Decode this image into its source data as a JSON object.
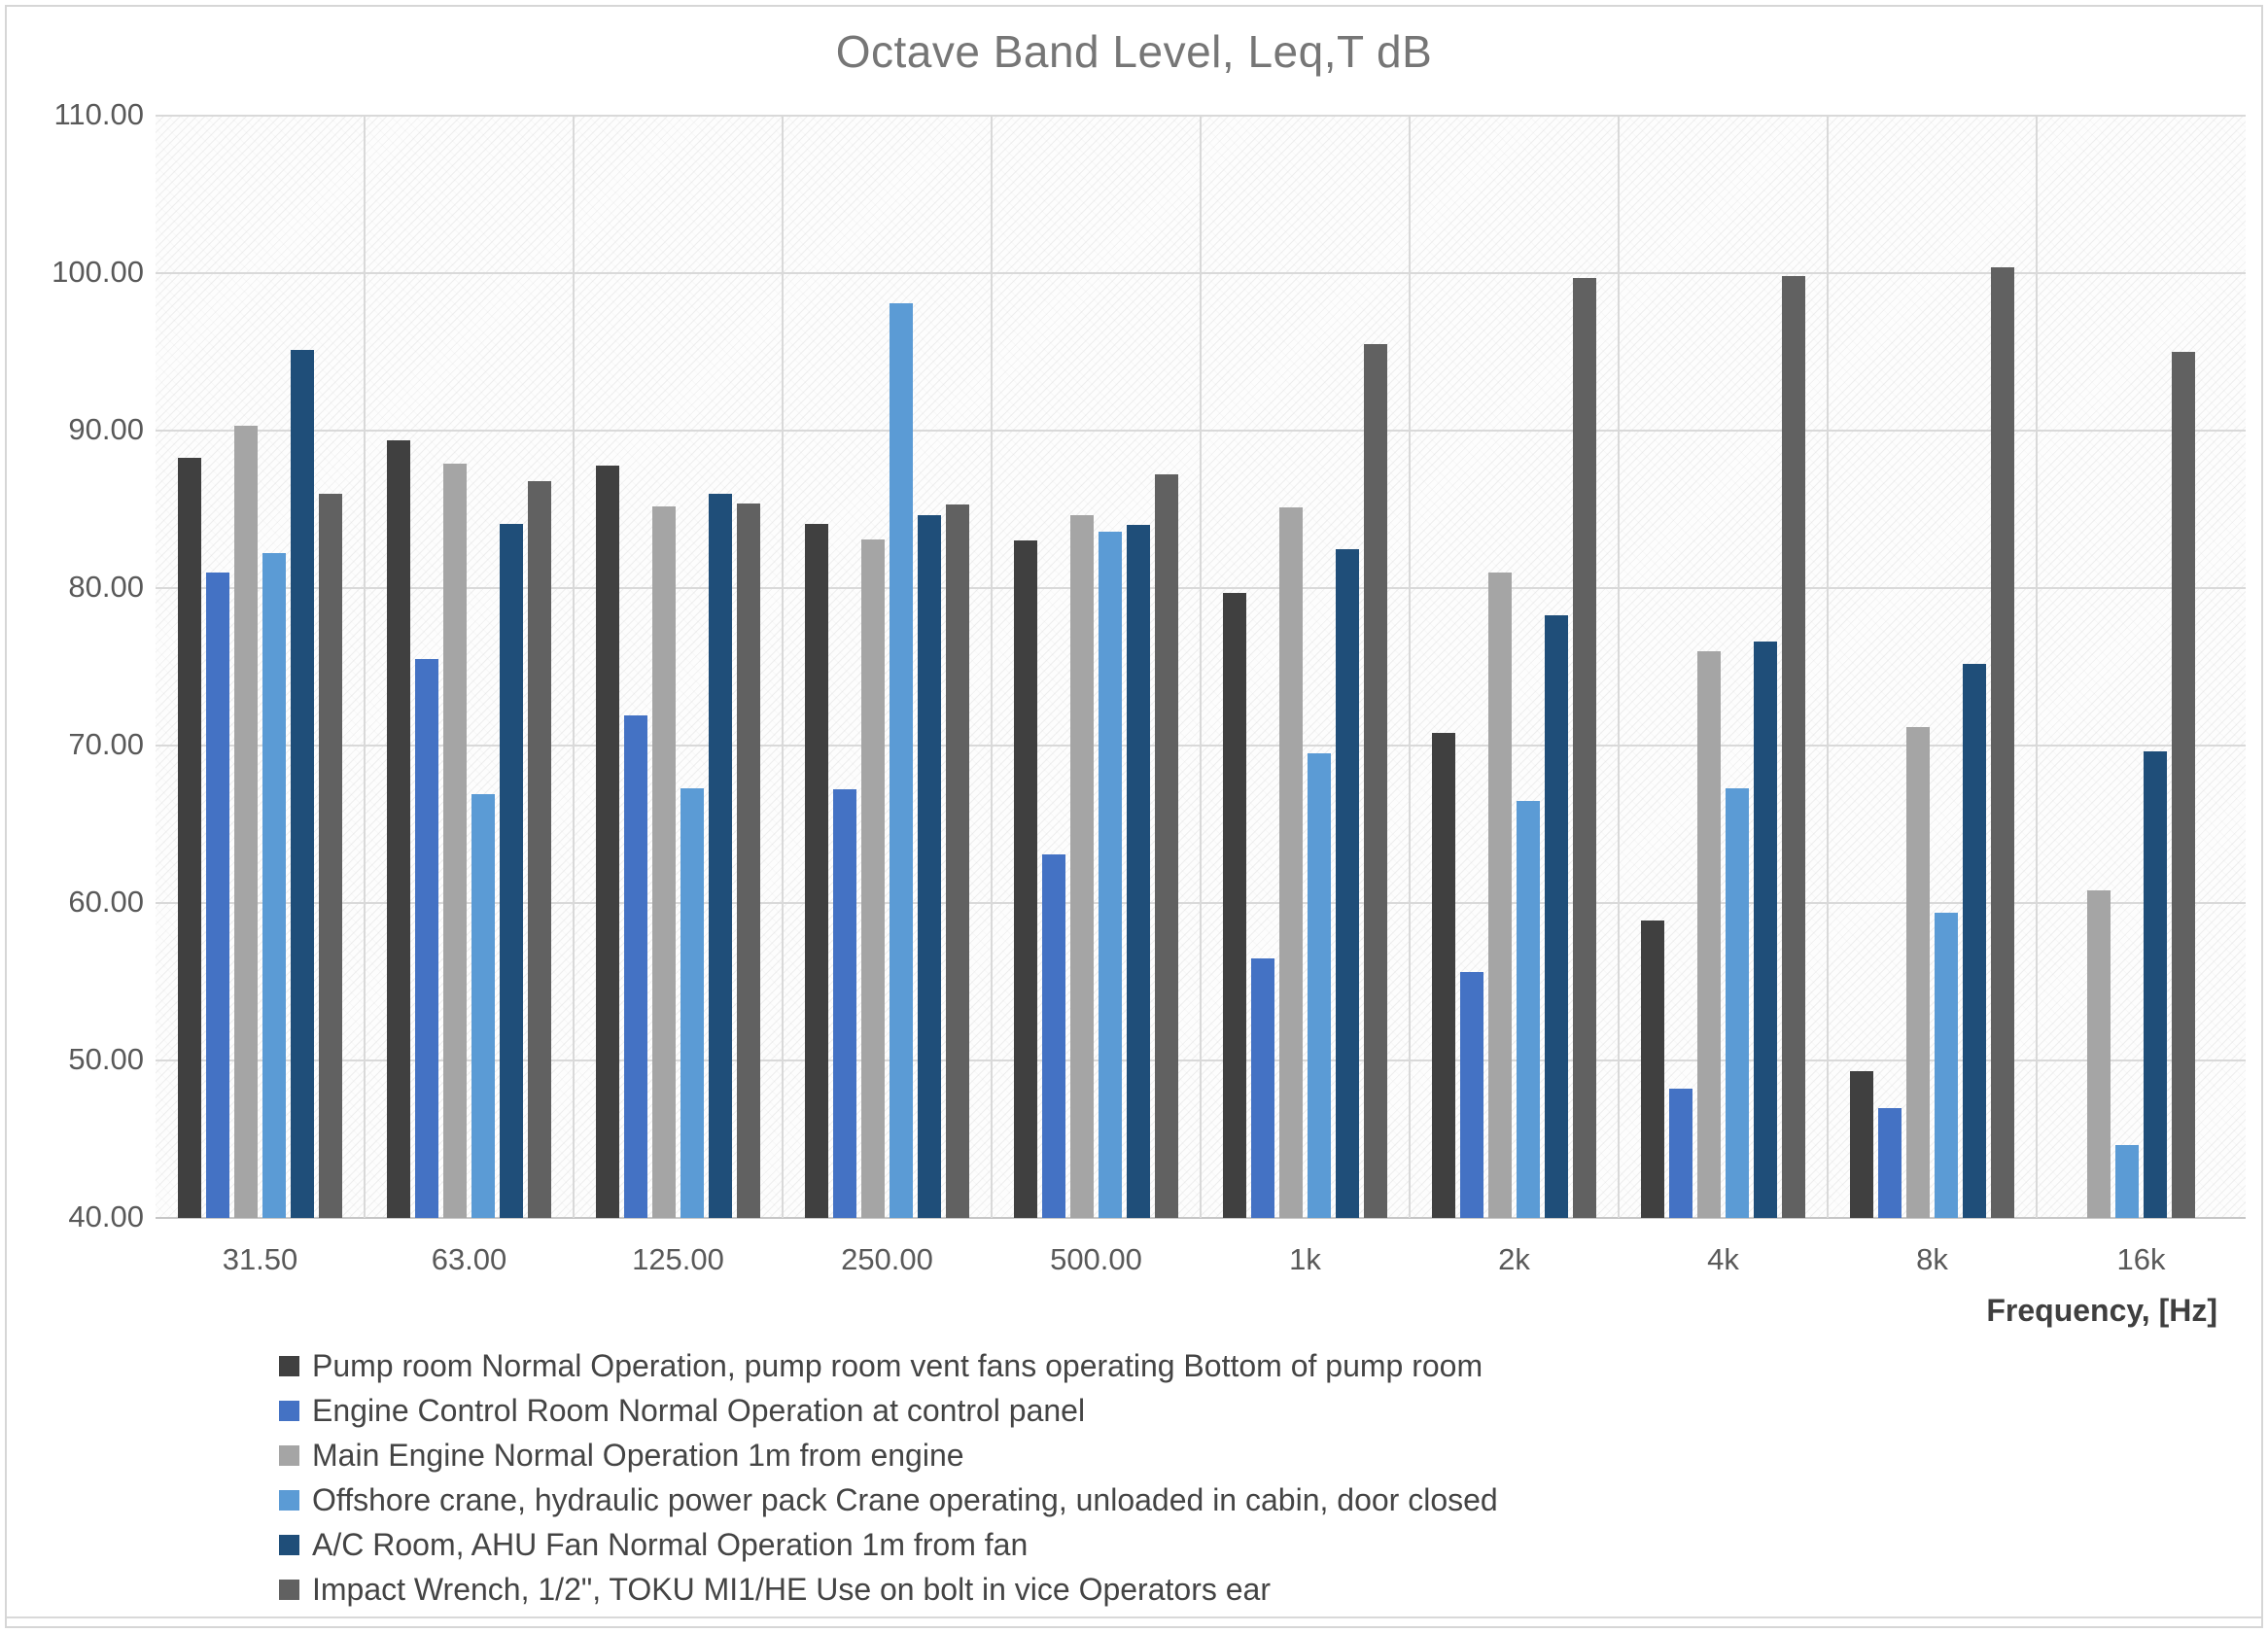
{
  "chart": {
    "title": "Octave Band Level, Leq,T dB",
    "xaxis_title": "Frequency, [Hz]"
  },
  "chart_data": {
    "type": "bar",
    "title": "Octave Band Level, Leq,T dB",
    "xlabel": "Frequency, [Hz]",
    "ylabel": "",
    "ylim": [
      40,
      110
    ],
    "ytick_step": 10,
    "yticks": [
      "110.00",
      "100.00",
      "90.00",
      "80.00",
      "70.00",
      "60.00",
      "50.00",
      "40.00"
    ],
    "grid": true,
    "plot_background": "diagonal-hatch",
    "legend_position": "bottom-left",
    "gridline_color": "#d9d9d9",
    "categories": [
      "31.50",
      "63.00",
      "125.00",
      "250.00",
      "500.00",
      "1k",
      "2k",
      "4k",
      "8k",
      "16k"
    ],
    "series": [
      {
        "name": "Pump room Normal Operation, pump room vent fans operating Bottom of pump room",
        "color": "#404040",
        "values": [
          88.3,
          89.4,
          87.8,
          84.1,
          83.0,
          79.7,
          70.8,
          58.9,
          49.3,
          null
        ]
      },
      {
        "name": "Engine Control Room Normal Operation at control panel",
        "color": "#4472C4",
        "values": [
          81.0,
          75.5,
          71.9,
          67.2,
          63.1,
          56.5,
          55.6,
          48.2,
          47.0,
          null
        ]
      },
      {
        "name": "Main Engine Normal Operation 1m from engine",
        "color": "#A5A5A5",
        "values": [
          90.3,
          87.9,
          85.2,
          83.1,
          84.6,
          85.1,
          81.0,
          76.0,
          71.2,
          60.8
        ]
      },
      {
        "name": "Offshore crane, hydraulic power pack Crane operating, unloaded in cabin, door closed",
        "color": "#5B9BD5",
        "values": [
          82.2,
          66.9,
          67.3,
          98.1,
          83.6,
          69.5,
          66.5,
          67.3,
          59.4,
          44.6
        ]
      },
      {
        "name": "A/C Room, AHU Fan Normal Operation 1m from fan",
        "color": "#1F4E79",
        "values": [
          95.1,
          84.1,
          86.0,
          84.6,
          84.0,
          82.5,
          78.3,
          76.6,
          75.2,
          69.6
        ]
      },
      {
        "name": "Impact Wrench, 1/2\", TOKU MI1/HE Use on bolt in vice Operators ear",
        "color": "#616161",
        "values": [
          86.0,
          86.8,
          85.4,
          85.3,
          87.2,
          95.5,
          99.7,
          99.8,
          100.4,
          95.0
        ]
      }
    ]
  }
}
